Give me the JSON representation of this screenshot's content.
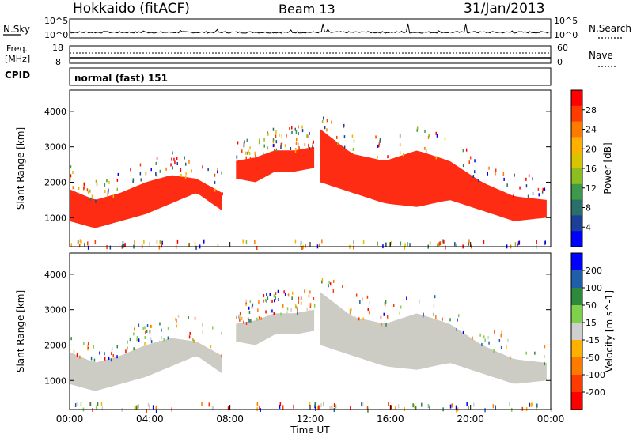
{
  "header": {
    "station": "Hokkaido (fitACF)",
    "beam": "Beam 13",
    "date": "31/Jan/2013"
  },
  "noise_panel": {
    "left_label": "N.Sky",
    "right_label": "N.Search",
    "tick_top": "10^5",
    "tick_bottom": "10^0",
    "right_tick_top": "10^5",
    "right_tick_bottom": "10^0"
  },
  "freq_panel": {
    "left_label_1": "Freq.",
    "left_label_2": "[MHz]",
    "right_label": "Nave",
    "left_ticks": [
      "18",
      "8"
    ],
    "right_ticks": [
      "60",
      "0"
    ]
  },
  "cpid_panel": {
    "label": "CPID",
    "text": "normal (fast) 151"
  },
  "chart_data": [
    {
      "type": "heatmap",
      "title": "",
      "xlabel": "",
      "ylabel": "Slant Range [km]",
      "x_ticks": [],
      "y_ticks": [
        "1000",
        "2000",
        "3000",
        "4000"
      ],
      "xlim_hours": [
        0,
        24
      ],
      "ylim_km": [
        180,
        4600
      ],
      "colorbar": {
        "label": "Power [dB]",
        "ticks": [
          "28",
          "24",
          "20",
          "16",
          "12",
          "8",
          "4"
        ],
        "colors": [
          "#ff0000",
          "#ff3c00",
          "#ff7a00",
          "#ffb000",
          "#d8c400",
          "#8cbe20",
          "#3c9a4a",
          "#2a6f6a",
          "#1c3f9a",
          "#0000ff"
        ]
      },
      "echo_bands": [
        {
          "start_h": 0.0,
          "end_h": 7.6,
          "lower_km": [
            900,
            700,
            900,
            1100,
            1400,
            1700,
            1200
          ],
          "upper_km": [
            1800,
            1500,
            1700,
            2000,
            2200,
            2100,
            1700
          ],
          "color": "#ff1a00"
        },
        {
          "start_h": 8.3,
          "end_h": 12.2,
          "lower_km": [
            2100,
            2000,
            2300,
            2300,
            2400
          ],
          "upper_km": [
            2600,
            2700,
            2900,
            2900,
            3000
          ],
          "color": "#ff1a00"
        },
        {
          "start_h": 12.5,
          "end_h": 23.8,
          "lower_km": [
            2000,
            1700,
            1400,
            1300,
            1500,
            1200,
            900,
            1000
          ],
          "upper_km": [
            3500,
            2800,
            2600,
            2900,
            2600,
            2000,
            1600,
            1500
          ],
          "color": "#ff1a00"
        }
      ]
    },
    {
      "type": "heatmap",
      "title": "",
      "xlabel": "Time UT",
      "ylabel": "Slant Range [km]",
      "x_ticks": [
        "00:00",
        "04:00",
        "08:00",
        "12:00",
        "16:00",
        "20:00",
        "00:00"
      ],
      "y_ticks": [
        "1000",
        "2000",
        "3000",
        "4000"
      ],
      "xlim_hours": [
        0,
        24
      ],
      "ylim_km": [
        180,
        4600
      ],
      "colorbar": {
        "label": "Velocity [m s^-1]",
        "ticks": [
          "200",
          "100",
          "50",
          "15",
          "-15",
          "-50",
          "-100",
          "-200"
        ],
        "colors": [
          "#0000ff",
          "#1f5faa",
          "#2d8a3c",
          "#7fd04a",
          "#cfcfcf",
          "#ffb100",
          "#ff7a00",
          "#ff3c00",
          "#ff0000"
        ]
      },
      "echo_bands": [
        {
          "start_h": 0.0,
          "end_h": 7.6,
          "lower_km": [
            900,
            700,
            900,
            1100,
            1400,
            1700,
            1200
          ],
          "upper_km": [
            1800,
            1500,
            1700,
            2000,
            2200,
            2100,
            1700
          ],
          "color": "#c8c8c0"
        },
        {
          "start_h": 8.3,
          "end_h": 12.2,
          "lower_km": [
            2100,
            2000,
            2300,
            2300,
            2400
          ],
          "upper_km": [
            2600,
            2700,
            2900,
            2900,
            3000
          ],
          "color": "#c8c8c0"
        },
        {
          "start_h": 12.5,
          "end_h": 23.8,
          "lower_km": [
            2000,
            1700,
            1400,
            1300,
            1500,
            1200,
            900,
            1000
          ],
          "upper_km": [
            3500,
            2800,
            2600,
            2900,
            2600,
            2000,
            1600,
            1500
          ],
          "color": "#c8c8c0"
        }
      ]
    }
  ]
}
